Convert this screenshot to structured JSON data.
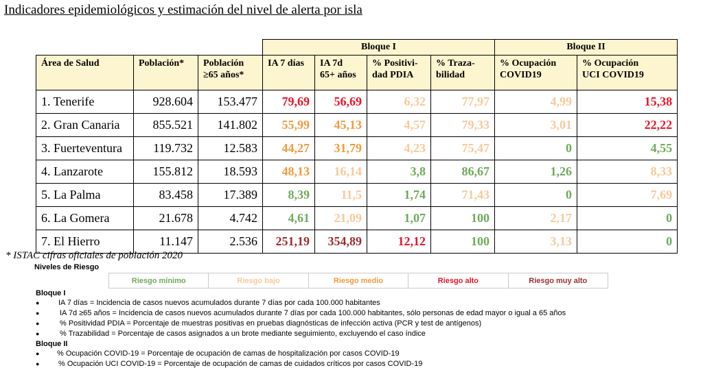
{
  "title": "Indicadores epidemiológicos y estimación del nivel de alerta por isla",
  "colors": {
    "riesgo_minimo": "#6fa95a",
    "riesgo_bajo": "#f8c99a",
    "riesgo_medio": "#f29a3d",
    "riesgo_alto": "#e8142a",
    "riesgo_muy_alto": "#9b2d2d",
    "header_bg": "#fdf5d0"
  },
  "blocks": [
    "Bloque I",
    "Bloque II"
  ],
  "headers": {
    "area": "Área de Salud",
    "poblacion": "Población*",
    "poblacion65_l1": "Población",
    "poblacion65_l2": "≥65 años*",
    "ia7_l1": "IA 7 días",
    "ia7_l2": "",
    "ia7_65_l1": "IA 7d",
    "ia7_65_l2": "65+ años",
    "positividad_l1": "% Positivi-",
    "positividad_l2": "dad PDIA",
    "trazabilidad_l1": "% Traza-",
    "trazabilidad_l2": "bilidad",
    "ocup_l1": "% Ocupación",
    "ocup_l2": "COVID19",
    "uci_l1": "% Ocupación",
    "uci_l2": "UCI COVID19"
  },
  "rows": [
    {
      "area": "1. Tenerife",
      "poblacion": "928.604",
      "poblacion65": "153.477",
      "ia7": "79,69",
      "ia7_level": "riesgo_alto",
      "ia7_65": "56,69",
      "ia7_65_level": "riesgo_alto",
      "positividad": "6,32",
      "positividad_level": "riesgo_bajo",
      "trazabilidad": "77,97",
      "trazabilidad_level": "riesgo_bajo",
      "ocupacion": "4,99",
      "ocupacion_level": "riesgo_bajo",
      "uci": "15,38",
      "uci_level": "riesgo_alto"
    },
    {
      "area": "2. Gran Canaria",
      "poblacion": "855.521",
      "poblacion65": "141.802",
      "ia7": "55,99",
      "ia7_level": "riesgo_medio",
      "ia7_65": "45,13",
      "ia7_65_level": "riesgo_medio",
      "positividad": "4,57",
      "positividad_level": "riesgo_bajo",
      "trazabilidad": "79,33",
      "trazabilidad_level": "riesgo_bajo",
      "ocupacion": "3,01",
      "ocupacion_level": "riesgo_bajo",
      "uci": "22,22",
      "uci_level": "riesgo_alto"
    },
    {
      "area": "3. Fuerteventura",
      "poblacion": "119.732",
      "poblacion65": "12.583",
      "ia7": "44,27",
      "ia7_level": "riesgo_medio",
      "ia7_65": "31,79",
      "ia7_65_level": "riesgo_medio",
      "positividad": "4,23",
      "positividad_level": "riesgo_bajo",
      "trazabilidad": "75,47",
      "trazabilidad_level": "riesgo_bajo",
      "ocupacion": "0",
      "ocupacion_level": "riesgo_minimo",
      "uci": "4,55",
      "uci_level": "riesgo_minimo"
    },
    {
      "area": "4. Lanzarote",
      "poblacion": "155.812",
      "poblacion65": "18.593",
      "ia7": "48,13",
      "ia7_level": "riesgo_medio",
      "ia7_65": "16,14",
      "ia7_65_level": "riesgo_bajo",
      "positividad": "3,8",
      "positividad_level": "riesgo_minimo",
      "trazabilidad": "86,67",
      "trazabilidad_level": "riesgo_minimo",
      "ocupacion": "1,26",
      "ocupacion_level": "riesgo_minimo",
      "uci": "8,33",
      "uci_level": "riesgo_bajo"
    },
    {
      "area": "5. La Palma",
      "poblacion": "83.458",
      "poblacion65": "17.389",
      "ia7": "8,39",
      "ia7_level": "riesgo_minimo",
      "ia7_65": "11,5",
      "ia7_65_level": "riesgo_bajo",
      "positividad": "1,74",
      "positividad_level": "riesgo_minimo",
      "trazabilidad": "71,43",
      "trazabilidad_level": "riesgo_bajo",
      "ocupacion": "0",
      "ocupacion_level": "riesgo_minimo",
      "uci": "7,69",
      "uci_level": "riesgo_bajo"
    },
    {
      "area": "6. La Gomera",
      "poblacion": "21.678",
      "poblacion65": "4.742",
      "ia7": "4,61",
      "ia7_level": "riesgo_minimo",
      "ia7_65": "21,09",
      "ia7_65_level": "riesgo_bajo",
      "positividad": "1,07",
      "positividad_level": "riesgo_minimo",
      "trazabilidad": "100",
      "trazabilidad_level": "riesgo_minimo",
      "ocupacion": "2,17",
      "ocupacion_level": "riesgo_bajo",
      "uci": "0",
      "uci_level": "riesgo_minimo"
    },
    {
      "area": "7. El Hierro",
      "poblacion": "11.147",
      "poblacion65": "2.536",
      "ia7": "251,19",
      "ia7_level": "riesgo_muy_alto",
      "ia7_65": "354,89",
      "ia7_65_level": "riesgo_muy_alto",
      "positividad": "12,12",
      "positividad_level": "riesgo_alto",
      "trazabilidad": "100",
      "trazabilidad_level": "riesgo_minimo",
      "ocupacion": "3,13",
      "ocupacion_level": "riesgo_bajo",
      "uci": "0",
      "uci_level": "riesgo_minimo"
    }
  ],
  "footnote": "* ISTAC cifras oficiales de población 2020",
  "niveles_title": "Niveles de Riesgo",
  "niveles": [
    {
      "label": "Riesgo mínimo",
      "level": "riesgo_minimo"
    },
    {
      "label": "Riesgo bajo",
      "level": "riesgo_bajo"
    },
    {
      "label": "Riesgo medio",
      "level": "riesgo_medio"
    },
    {
      "label": "Riesgo alto",
      "level": "riesgo_alto"
    },
    {
      "label": "Riesgo muy alto",
      "level": "riesgo_muy_alto"
    }
  ],
  "definitions": {
    "bloque1_title": "Bloque I",
    "bloque1": [
      "IA 7 días = Incidencia de casos nuevos acumulados durante 7 días por cada 100.000 habitantes",
      "IA 7d ≥65 años = Incidencia de casos nuevos acumulados durante 7 días por cada 100.000 habitantes, sólo personas de edad mayor o igual a 65 años",
      "% Positividad PDIA = Porcentaje de muestras positivas en pruebas diagnósticas de infección activa (PCR y test de antígenos)",
      "% Trazabilidad = Porcentaje de casos asignados a un brote mediante seguimiento, excluyendo el caso índice"
    ],
    "bloque2_title": "Bloque II",
    "bloque2": [
      "% Ocupación COVID-19 = Porcentaje de ocupación de camas de hospitalización por casos COVID-19",
      "% Ocupación UCI COVID-19 = Porcentaje de ocupación de camas de cuidados críticos por casos COVID-19"
    ]
  }
}
